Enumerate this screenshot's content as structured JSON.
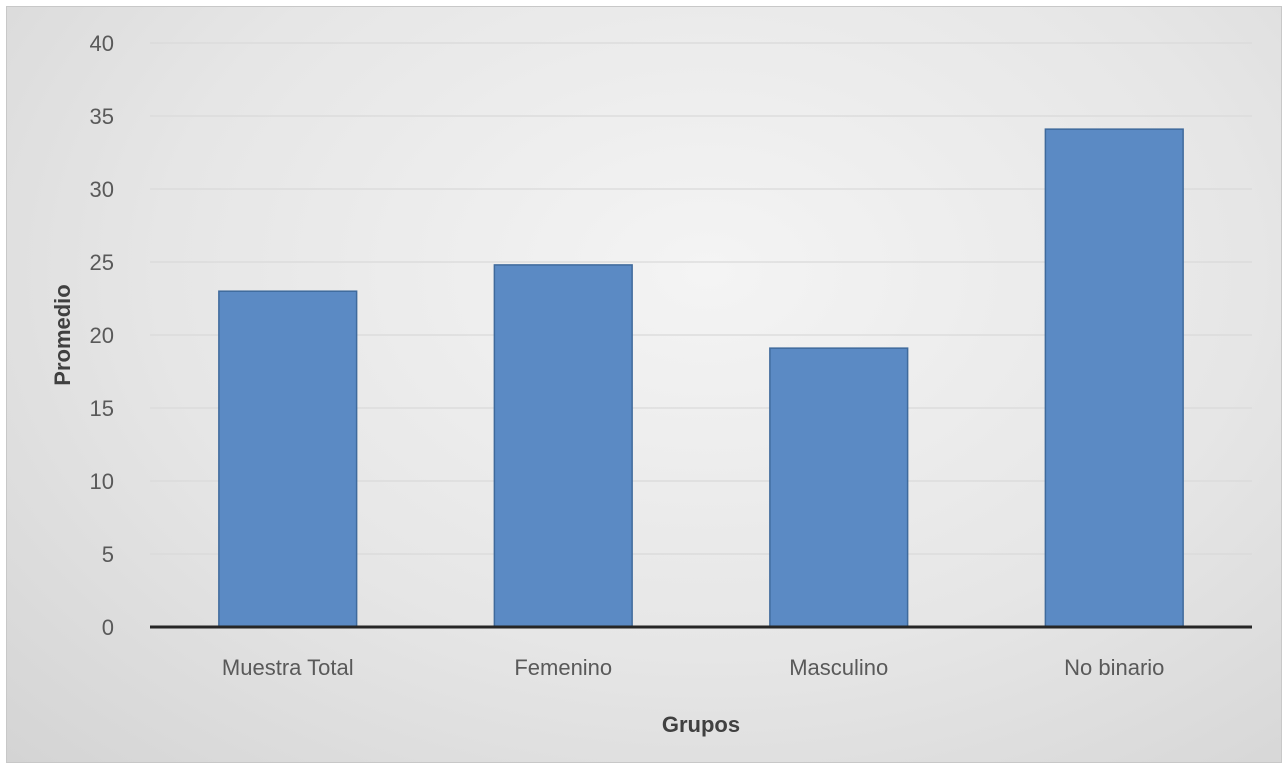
{
  "chart_data": {
    "type": "bar",
    "title": "",
    "xlabel": "Grupos",
    "ylabel": "Promedio",
    "categories": [
      "Muestra Total",
      "Femenino",
      "Masculino",
      "No binario"
    ],
    "values": [
      23,
      24.8,
      19.1,
      34.1
    ],
    "ylim": [
      0,
      40
    ],
    "yticks": [
      0,
      5,
      10,
      15,
      20,
      25,
      30,
      35,
      40
    ],
    "grid": true,
    "legend": "none",
    "bar_color": "#5b8ac4"
  }
}
